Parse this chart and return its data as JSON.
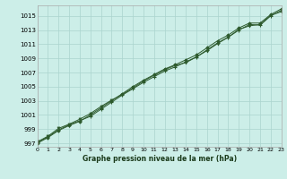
{
  "title": "Graphe pression niveau de la mer (hPa)",
  "x_labels": [
    "0",
    "1",
    "2",
    "3",
    "4",
    "5",
    "6",
    "7",
    "8",
    "9",
    "10",
    "11",
    "12",
    "13",
    "14",
    "15",
    "16",
    "17",
    "18",
    "19",
    "20",
    "21",
    "22",
    "23"
  ],
  "xlim": [
    0,
    23
  ],
  "ylim": [
    996.5,
    1016.5
  ],
  "yticks": [
    997,
    999,
    1001,
    1003,
    1005,
    1007,
    1009,
    1011,
    1013,
    1015
  ],
  "bg_color": "#cceee8",
  "grid_color": "#aad4ce",
  "line_color": "#2d5a2d",
  "marker_color": "#2d5a2d",
  "series1": [
    997.1,
    997.9,
    998.9,
    999.6,
    1000.2,
    1000.8,
    1001.8,
    1002.8,
    1003.8,
    1004.7,
    1005.6,
    1006.4,
    1007.2,
    1007.8,
    1008.5,
    1009.2,
    1010.2,
    1011.2,
    1012.0,
    1013.0,
    1013.8,
    1013.7,
    1015.0,
    1015.8
  ],
  "series2": [
    997.0,
    997.8,
    998.8,
    999.5,
    1000.1,
    1001.0,
    1002.0,
    1003.0,
    1004.0,
    1005.0,
    1005.9,
    1006.7,
    1007.5,
    1008.1,
    1008.8,
    1009.5,
    1010.5,
    1011.5,
    1012.3,
    1013.3,
    1014.0,
    1014.0,
    1015.2,
    1016.0
  ],
  "series3": [
    997.2,
    998.0,
    999.1,
    999.7,
    1000.4,
    1001.2,
    1002.2,
    1003.1,
    1003.9,
    1004.8,
    1005.8,
    1006.6,
    1007.4,
    1008.0,
    1008.4,
    1009.2,
    1010.1,
    1011.1,
    1012.0,
    1013.1,
    1013.6,
    1013.8,
    1015.1,
    1015.6
  ]
}
